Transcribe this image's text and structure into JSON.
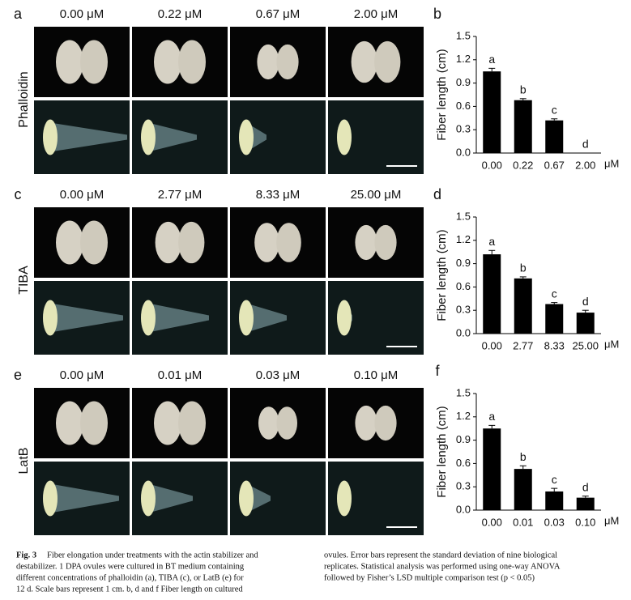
{
  "panels": [
    {
      "letter": "a",
      "treatment": "Phalloidin",
      "concentrations": [
        "0.00 μM",
        "0.22 μM",
        "0.67 μM",
        "2.00 μM"
      ]
    },
    {
      "letter": "c",
      "treatment": "TIBA",
      "concentrations": [
        "0.00 μM",
        "2.77 μM",
        "8.33 μM",
        "25.00 μM"
      ]
    },
    {
      "letter": "e",
      "treatment": "LatB",
      "concentrations": [
        "0.00 μM",
        "0.01 μM",
        "0.03 μM",
        "0.10 μM"
      ]
    }
  ],
  "chart_data": [
    {
      "type": "bar",
      "panel": "b",
      "ylabel": "Fiber length (cm)",
      "unit": "μM",
      "categories": [
        "0.00",
        "0.22",
        "0.67",
        "2.00"
      ],
      "values": [
        1.05,
        0.68,
        0.42,
        0
      ],
      "errors": [
        0.04,
        0.02,
        0.02,
        0
      ],
      "annotations": [
        "a",
        "b",
        "c",
        "d"
      ],
      "color": "#000000",
      "ylim": [
        0,
        1.5
      ],
      "yticks": [
        {
          "value": 0,
          "label": "0.0"
        },
        0.3,
        0.6,
        0.9,
        1.2,
        1.5
      ]
    },
    {
      "type": "bar",
      "panel": "d",
      "ylabel": "Fiber length (cm)",
      "unit": "μM",
      "categories": [
        "0.00",
        "2.77",
        "8.33",
        "25.00"
      ],
      "values": [
        1.02,
        0.71,
        0.38,
        0.27
      ],
      "errors": [
        0.05,
        0.02,
        0.02,
        0.03
      ],
      "annotations": [
        "a",
        "b",
        "c",
        "d"
      ],
      "color": "#000000",
      "ylim": [
        0,
        1.5
      ],
      "yticks": [
        {
          "value": 0,
          "label": "0.0"
        },
        0.3,
        0.6,
        0.9,
        1.2,
        1.5
      ]
    },
    {
      "type": "bar",
      "panel": "f",
      "ylabel": "Fiber length (cm)",
      "unit": "μM",
      "categories": [
        "0.00",
        "0.01",
        "0.03",
        "0.10"
      ],
      "values": [
        1.05,
        0.53,
        0.24,
        0.16
      ],
      "errors": [
        0.04,
        0.04,
        0.04,
        0.02
      ],
      "annotations": [
        "a",
        "b",
        "c",
        "d"
      ],
      "color": "#000000",
      "ylim": [
        0,
        1.5
      ],
      "yticks": [
        {
          "value": 0,
          "label": "0.0"
        },
        0.3,
        0.6,
        0.9,
        1.2,
        1.5
      ]
    }
  ],
  "caption": {
    "figure": "Fig. 3",
    "left": [
      "Fiber elongation under treatments with the actin stabilizer and",
      "destabilizer. 1 DPA ovules were cultured in BT medium containing",
      "different concentrations of phalloidin (a), TIBA (c), or LatB (e) for",
      "12 d. Scale bars represent 1 cm. b, d and f Fiber length on cultured"
    ],
    "right": [
      "ovules. Error bars represent the standard deviation of nine biological",
      "replicates. Statistical analysis was performed using one-way ANOVA",
      "followed by Fisher’s LSD multiple comparison test (p < 0.05)"
    ]
  }
}
